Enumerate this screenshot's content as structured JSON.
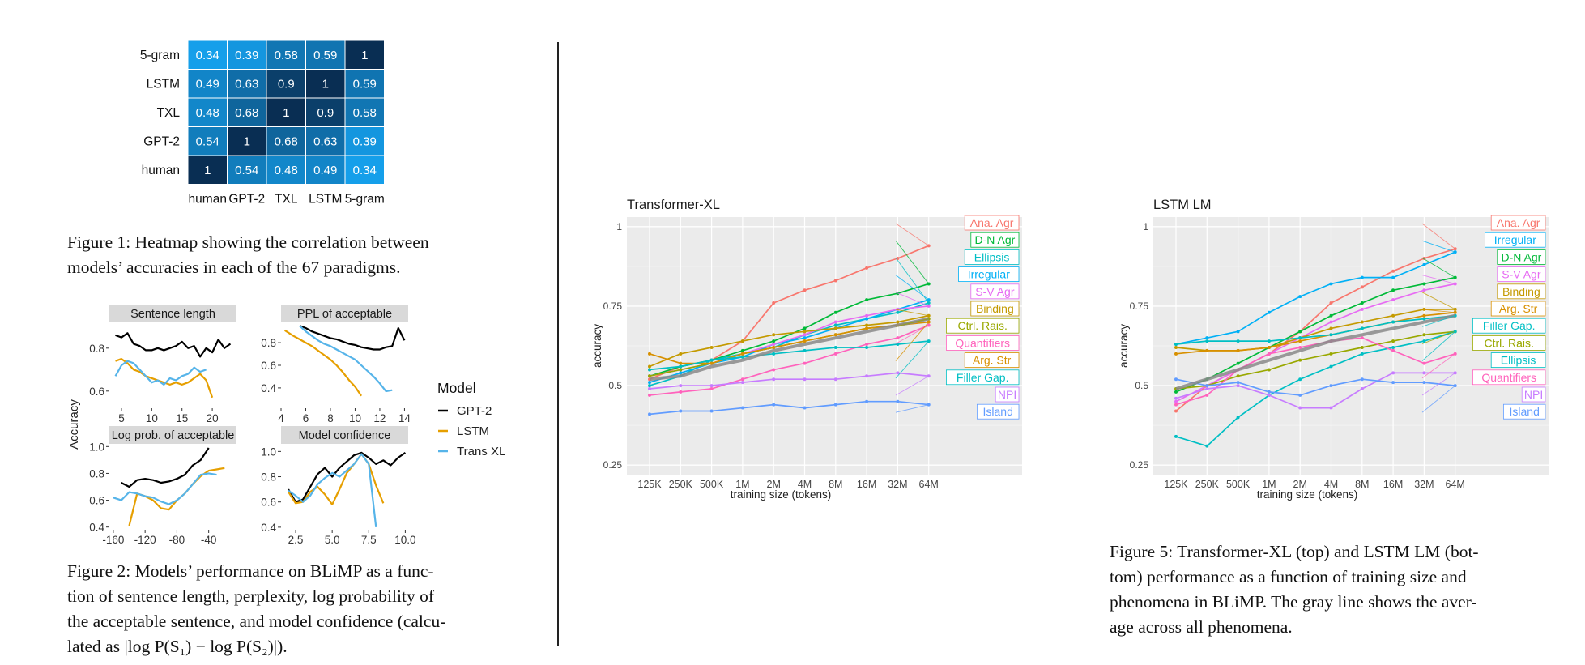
{
  "heatmap": {
    "rows": [
      "5-gram",
      "LSTM",
      "TXL",
      "GPT-2",
      "human"
    ],
    "cols": [
      "human",
      "GPT-2",
      "TXL",
      "LSTM",
      "5-gram"
    ],
    "values": [
      [
        0.34,
        0.39,
        0.58,
        0.59,
        1
      ],
      [
        0.49,
        0.63,
        0.9,
        1,
        0.59
      ],
      [
        0.48,
        0.68,
        1,
        0.9,
        0.58
      ],
      [
        0.54,
        1,
        0.68,
        0.63,
        0.39
      ],
      [
        1,
        0.54,
        0.48,
        0.49,
        0.34
      ]
    ],
    "labels": [
      [
        "0.34",
        "0.39",
        "0.58",
        "0.59",
        "1"
      ],
      [
        "0.49",
        "0.63",
        "0.9",
        "1",
        "0.59"
      ],
      [
        "0.48",
        "0.68",
        "1",
        "0.9",
        "0.58"
      ],
      [
        "0.54",
        "1",
        "0.68",
        "0.63",
        "0.39"
      ],
      [
        "1",
        "0.54",
        "0.48",
        "0.49",
        "0.34"
      ]
    ]
  },
  "fig1_caption": [
    "Figure 1:  Heatmap showing the correlation between",
    "models’ accuracies in each of the 67 paradigms."
  ],
  "fig2": {
    "ylabel": "Accuracy",
    "legend_title": "Model",
    "legend": [
      {
        "name": "GPT-2",
        "color": "#000000"
      },
      {
        "name": "LSTM",
        "color": "#E69F00"
      },
      {
        "name": "Trans XL",
        "color": "#56B4E9"
      }
    ],
    "panels": [
      {
        "title": "Sentence length",
        "xlim": [
          3,
          24
        ],
        "ylim": [
          0.52,
          0.92
        ],
        "xticks": [
          5,
          10,
          15,
          20
        ],
        "xtick_labels": [
          "5",
          "10",
          "15",
          "20"
        ],
        "yticks": [
          0.6,
          0.8
        ],
        "ytick_labels": [
          "0.6",
          "0.8"
        ],
        "x": [
          4,
          5,
          6,
          7,
          8,
          9,
          10,
          11,
          12,
          13,
          14,
          15,
          16,
          17,
          18,
          19,
          20,
          21,
          22,
          23
        ],
        "series": [
          {
            "name": "GPT-2",
            "values": [
              0.86,
              0.85,
              0.87,
              0.82,
              0.81,
              0.79,
              0.79,
              0.8,
              0.79,
              0.8,
              0.81,
              0.83,
              0.8,
              0.81,
              0.76,
              0.8,
              0.78,
              0.84,
              0.8,
              0.82
            ]
          },
          {
            "name": "LSTM",
            "values": [
              0.74,
              0.75,
              0.73,
              0.7,
              0.69,
              0.67,
              0.66,
              0.65,
              0.64,
              0.63,
              0.64,
              0.63,
              0.64,
              0.66,
              0.68,
              0.65,
              0.57,
              null,
              null,
              null
            ]
          },
          {
            "name": "Trans XL",
            "values": [
              0.67,
              0.72,
              0.74,
              0.73,
              0.7,
              0.67,
              0.64,
              0.65,
              0.63,
              0.66,
              0.65,
              0.67,
              0.68,
              0.71,
              0.69,
              0.7,
              null,
              null,
              null,
              null
            ]
          }
        ]
      },
      {
        "title": "PPL of acceptable",
        "xlim": [
          4,
          14.3
        ],
        "ylim": [
          0.22,
          0.98
        ],
        "xticks": [
          4,
          6,
          8,
          10,
          12,
          14
        ],
        "xtick_labels": [
          "4",
          "6",
          "8",
          "10",
          "12",
          "14"
        ],
        "yticks": [
          0.4,
          0.6,
          0.8
        ],
        "ytick_labels": [
          "0.4",
          "0.6",
          "0.8"
        ],
        "x": [
          4.3,
          5,
          5.5,
          6,
          6.5,
          7,
          7.5,
          8,
          8.5,
          9,
          9.5,
          10,
          10.5,
          11,
          11.5,
          12,
          12.5,
          13,
          13.5,
          14
        ],
        "series": [
          {
            "name": "GPT-2",
            "values": [
              null,
              null,
              0.95,
              0.93,
              0.9,
              0.88,
              0.86,
              0.84,
              0.83,
              0.81,
              0.79,
              0.78,
              0.76,
              0.75,
              0.74,
              0.74,
              0.76,
              0.77,
              0.93,
              0.82
            ]
          },
          {
            "name": "LSTM",
            "values": [
              0.91,
              0.86,
              0.83,
              0.8,
              0.77,
              0.73,
              0.69,
              0.65,
              0.6,
              0.54,
              0.47,
              0.41,
              0.33,
              null,
              null,
              null,
              null,
              null,
              null,
              null
            ]
          },
          {
            "name": "Trans XL",
            "values": [
              null,
              null,
              0.95,
              0.9,
              0.86,
              0.82,
              0.79,
              0.77,
              0.74,
              0.71,
              0.68,
              0.65,
              0.6,
              0.55,
              0.5,
              0.44,
              0.37,
              0.38,
              null,
              null
            ]
          }
        ]
      },
      {
        "title": "Log prob. of acceptable",
        "xlim": [
          -165,
          -5
        ],
        "ylim": [
          0.38,
          1.02
        ],
        "xticks": [
          -160,
          -120,
          -80,
          -40
        ],
        "xtick_labels": [
          "-160",
          "-120",
          "-80",
          "-40"
        ],
        "yticks": [
          0.4,
          0.6,
          0.8,
          1.0
        ],
        "ytick_labels": [
          "0.4",
          "0.6",
          "0.8",
          "1.0"
        ],
        "x": [
          -160,
          -150,
          -140,
          -130,
          -120,
          -110,
          -100,
          -90,
          -80,
          -70,
          -60,
          -50,
          -40,
          -30,
          -20,
          -10
        ],
        "series": [
          {
            "name": "GPT-2",
            "values": [
              null,
              0.73,
              0.7,
              0.75,
              0.76,
              0.75,
              0.73,
              0.74,
              0.76,
              0.79,
              0.86,
              0.9,
              0.99,
              null,
              null,
              null
            ]
          },
          {
            "name": "LSTM",
            "values": [
              null,
              null,
              0.41,
              0.65,
              0.63,
              0.6,
              0.54,
              0.53,
              0.6,
              0.65,
              0.72,
              0.78,
              0.82,
              0.83,
              0.84,
              null
            ]
          },
          {
            "name": "Trans XL",
            "values": [
              0.62,
              0.6,
              0.66,
              0.65,
              0.63,
              0.62,
              0.59,
              0.57,
              0.6,
              0.65,
              0.72,
              0.79,
              0.8,
              0.79,
              null,
              null
            ]
          }
        ]
      },
      {
        "title": "Model confidence",
        "xlim": [
          1.5,
          10.2
        ],
        "ylim": [
          0.38,
          1.06
        ],
        "xticks": [
          2.5,
          5.0,
          7.5,
          10.0
        ],
        "xtick_labels": [
          "2.5",
          "5.0",
          "7.5",
          "10.0"
        ],
        "yticks": [
          0.4,
          0.6,
          0.8,
          1.0
        ],
        "ytick_labels": [
          "0.4",
          "0.6",
          "0.8",
          "1.0"
        ],
        "x": [
          2,
          2.5,
          3,
          3.5,
          4,
          4.5,
          5,
          5.5,
          6,
          6.5,
          7,
          7.5,
          8,
          8.5,
          9,
          9.5,
          10
        ],
        "series": [
          {
            "name": "GPT-2",
            "values": [
              0.7,
              0.6,
              0.62,
              0.72,
              0.82,
              0.87,
              0.8,
              0.87,
              0.92,
              0.97,
              0.99,
              0.95,
              0.9,
              0.93,
              0.89,
              0.95,
              0.99
            ]
          },
          {
            "name": "LSTM",
            "values": [
              0.68,
              0.59,
              0.6,
              0.68,
              0.72,
              0.66,
              0.58,
              0.7,
              0.83,
              0.9,
              0.98,
              0.9,
              0.73,
              0.59,
              null,
              null,
              null
            ]
          },
          {
            "name": "Trans XL",
            "values": [
              0.69,
              0.65,
              0.6,
              0.65,
              0.74,
              0.79,
              0.83,
              0.8,
              0.85,
              0.9,
              0.98,
              0.9,
              0.4,
              null,
              null,
              null,
              null
            ]
          }
        ]
      }
    ]
  },
  "fig2_caption": [
    "Figure 2: Models’ performance on BLiMP as a func-",
    "tion of sentence length, perplexity, log probability of",
    "the acceptable sentence, and model confidence (calcu-",
    "lated as |log P(S₁) − log P(S₂)|)."
  ],
  "chart_data": [
    {
      "type": "line",
      "title": "Transformer-XL",
      "xlabel": "training size (tokens)",
      "ylabel": "accuracy",
      "x": [
        "125K",
        "250K",
        "500K",
        "1M",
        "2M",
        "4M",
        "8M",
        "16M",
        "32M",
        "64M"
      ],
      "yticks": [
        "0.25",
        "0.5",
        "0.75",
        "1"
      ],
      "ylim": [
        0.22,
        1.03
      ],
      "grid": true,
      "series": [
        {
          "name": "Ana. Agr",
          "color": "#F8766D",
          "values": [
            0.52,
            0.56,
            0.58,
            0.64,
            0.76,
            0.8,
            0.83,
            0.87,
            0.9,
            0.94
          ]
        },
        {
          "name": "D-N Agr",
          "color": "#00BA38",
          "values": [
            0.53,
            0.56,
            0.58,
            0.61,
            0.64,
            0.68,
            0.73,
            0.77,
            0.79,
            0.82
          ]
        },
        {
          "name": "Ellipsis",
          "color": "#00BFC4",
          "values": [
            0.5,
            0.53,
            0.58,
            0.6,
            0.62,
            0.66,
            0.69,
            0.71,
            0.73,
            0.76
          ]
        },
        {
          "name": "Irregular",
          "color": "#00B0F6",
          "values": [
            0.51,
            0.54,
            0.57,
            0.59,
            0.63,
            0.65,
            0.68,
            0.71,
            0.74,
            0.77
          ]
        },
        {
          "name": "S-V Agr",
          "color": "#E76BF3",
          "values": [
            0.53,
            0.55,
            0.57,
            0.6,
            0.63,
            0.66,
            0.7,
            0.72,
            0.74,
            0.75
          ]
        },
        {
          "name": "Binding",
          "color": "#C49A00",
          "values": [
            0.56,
            0.6,
            0.62,
            0.64,
            0.66,
            0.67,
            0.68,
            0.69,
            0.7,
            0.72
          ]
        },
        {
          "name": "Ctrl. Rais.",
          "color": "#99A800",
          "values": [
            0.53,
            0.55,
            0.57,
            0.6,
            0.62,
            0.64,
            0.66,
            0.68,
            0.69,
            0.71
          ]
        },
        {
          "name": "Quantifiers",
          "color": "#FF62BC",
          "values": [
            0.47,
            0.48,
            0.49,
            0.52,
            0.55,
            0.57,
            0.6,
            0.63,
            0.65,
            0.69
          ]
        },
        {
          "name": "Arg. Str",
          "color": "#D89000",
          "values": [
            0.6,
            0.57,
            0.57,
            0.6,
            0.62,
            0.64,
            0.66,
            0.68,
            0.69,
            0.7
          ]
        },
        {
          "name": "Filler Gap.",
          "color": "#00BFC4",
          "values": [
            0.55,
            0.56,
            0.58,
            0.59,
            0.6,
            0.61,
            0.62,
            0.62,
            0.63,
            0.64
          ]
        },
        {
          "name": "NPI",
          "color": "#C77CFF",
          "values": [
            0.49,
            0.5,
            0.5,
            0.51,
            0.52,
            0.52,
            0.52,
            0.53,
            0.54,
            0.53
          ]
        },
        {
          "name": "Island",
          "color": "#619CFF",
          "values": [
            0.41,
            0.42,
            0.42,
            0.43,
            0.44,
            0.43,
            0.44,
            0.45,
            0.45,
            0.44
          ]
        },
        {
          "name": "",
          "color": "#8A8A8A",
          "values": [
            0.52,
            0.53,
            0.56,
            0.58,
            0.61,
            0.63,
            0.65,
            0.67,
            0.69,
            0.71
          ]
        }
      ]
    },
    {
      "type": "line",
      "title": "LSTM LM",
      "xlabel": "training size (tokens)",
      "ylabel": "accuracy",
      "x": [
        "125K",
        "250K",
        "500K",
        "1M",
        "2M",
        "4M",
        "8M",
        "16M",
        "32M",
        "64M"
      ],
      "yticks": [
        "0.25",
        "0.5",
        "0.75",
        "1"
      ],
      "ylim": [
        0.22,
        1.03
      ],
      "grid": true,
      "series": [
        {
          "name": "Ana. Agr",
          "color": "#F8766D",
          "values": [
            0.42,
            0.5,
            0.55,
            0.6,
            0.67,
            0.76,
            0.81,
            0.86,
            0.9,
            0.93
          ]
        },
        {
          "name": "Irregular",
          "color": "#00B0F6",
          "values": [
            0.63,
            0.65,
            0.67,
            0.73,
            0.78,
            0.82,
            0.84,
            0.84,
            0.88,
            0.92
          ]
        },
        {
          "name": "D-N Agr",
          "color": "#00BA38",
          "values": [
            0.48,
            0.52,
            0.57,
            0.62,
            0.67,
            0.72,
            0.76,
            0.8,
            0.82,
            0.84
          ]
        },
        {
          "name": "S-V Agr",
          "color": "#E76BF3",
          "values": [
            0.45,
            0.5,
            0.55,
            0.6,
            0.65,
            0.7,
            0.74,
            0.77,
            0.8,
            0.82
          ]
        },
        {
          "name": "Binding",
          "color": "#C49A00",
          "values": [
            0.62,
            0.61,
            0.61,
            0.62,
            0.65,
            0.68,
            0.7,
            0.72,
            0.74,
            0.74
          ]
        },
        {
          "name": "Arg. Str",
          "color": "#D89000",
          "values": [
            0.6,
            0.61,
            0.61,
            0.62,
            0.64,
            0.66,
            0.68,
            0.7,
            0.72,
            0.73
          ]
        },
        {
          "name": "Filler Gap.",
          "color": "#00BFC4",
          "values": [
            0.63,
            0.64,
            0.64,
            0.64,
            0.65,
            0.66,
            0.68,
            0.7,
            0.71,
            0.72
          ]
        },
        {
          "name": "Ctrl. Rais.",
          "color": "#99A800",
          "values": [
            0.49,
            0.5,
            0.53,
            0.55,
            0.58,
            0.6,
            0.62,
            0.64,
            0.66,
            0.67
          ]
        },
        {
          "name": "Ellipsis",
          "color": "#00BFC4",
          "values": [
            0.34,
            0.31,
            0.4,
            0.47,
            0.52,
            0.56,
            0.6,
            0.62,
            0.64,
            0.67
          ]
        },
        {
          "name": "Quantifiers",
          "color": "#FF62BC",
          "values": [
            0.44,
            0.47,
            0.55,
            0.6,
            0.62,
            0.64,
            0.65,
            0.61,
            0.57,
            0.6
          ]
        },
        {
          "name": "NPI",
          "color": "#C77CFF",
          "values": [
            0.46,
            0.49,
            0.5,
            0.47,
            0.43,
            0.43,
            0.49,
            0.54,
            0.54,
            0.54
          ]
        },
        {
          "name": "Island",
          "color": "#619CFF",
          "values": [
            0.52,
            0.5,
            0.51,
            0.48,
            0.47,
            0.5,
            0.52,
            0.51,
            0.51,
            0.5
          ]
        },
        {
          "name": "",
          "color": "#8A8A8A",
          "values": [
            0.49,
            0.52,
            0.55,
            0.58,
            0.61,
            0.64,
            0.66,
            0.68,
            0.7,
            0.72
          ]
        }
      ]
    }
  ],
  "fig5_caption": [
    "Figure 5: Transformer-XL (top) and LSTM LM (bot-",
    "tom) performance as a function of training size and",
    "phenomena in BLiMP. The gray line shows the aver-",
    "age across all phenomena."
  ]
}
